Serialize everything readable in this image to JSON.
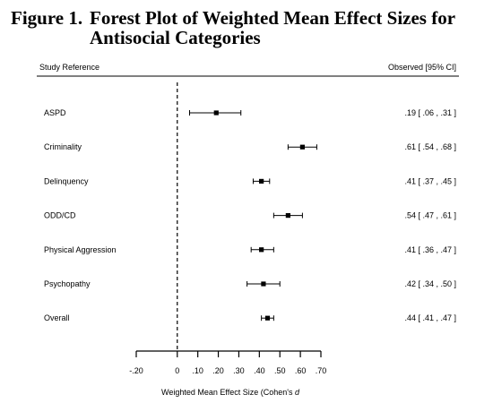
{
  "figure": {
    "label": "Figure 1.",
    "title": "Forest Plot of Weighted Mean Effect Sizes for Antisocial Categories"
  },
  "chart_data": {
    "type": "forest",
    "header_left": "Study Reference",
    "header_right": "Observed [95% CI]",
    "xlabel_main": "Weighted Mean Effect Size (Cohen's ",
    "xlabel_var": "d",
    "xlim": [
      -0.2,
      0.7
    ],
    "x_ticks": [
      -0.2,
      0,
      0.1,
      0.2,
      0.3,
      0.4,
      0.5,
      0.6,
      0.7
    ],
    "x_tick_labels": [
      "-.20",
      "0",
      ".10",
      ".20",
      ".30",
      ".40",
      ".50",
      ".60",
      ".70"
    ],
    "reference_line": 0,
    "rows": [
      {
        "label": "ASPD",
        "estimate": 0.19,
        "lower": 0.06,
        "upper": 0.31,
        "text": ".19 [ .06 , .31 ]"
      },
      {
        "label": "Criminality",
        "estimate": 0.61,
        "lower": 0.54,
        "upper": 0.68,
        "text": ".61 [ .54 , .68 ]"
      },
      {
        "label": "Delinquency",
        "estimate": 0.41,
        "lower": 0.37,
        "upper": 0.45,
        "text": ".41 [ .37 , .45 ]"
      },
      {
        "label": "ODD/CD",
        "estimate": 0.54,
        "lower": 0.47,
        "upper": 0.61,
        "text": ".54 [ .47 , .61 ]"
      },
      {
        "label": "Physical Aggression",
        "estimate": 0.41,
        "lower": 0.36,
        "upper": 0.47,
        "text": ".41 [ .36 , .47 ]"
      },
      {
        "label": "Psychopathy",
        "estimate": 0.42,
        "lower": 0.34,
        "upper": 0.5,
        "text": ".42 [ .34 , .50 ]"
      },
      {
        "label": "Overall",
        "estimate": 0.44,
        "lower": 0.41,
        "upper": 0.47,
        "text": ".44 [ .41 , .47 ]"
      }
    ]
  }
}
